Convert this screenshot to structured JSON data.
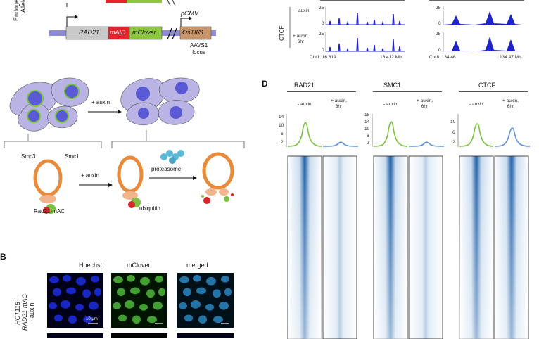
{
  "panel_a": {
    "side_label_line1": "Endogenous",
    "side_label_line2": "Alleles",
    "genes": {
      "rad21": "RAD21",
      "maid": "mAID",
      "mclover": "mClover",
      "ostir1": "OsTIR1"
    },
    "promoter": "pCMV",
    "locus_line1": "AAVS1",
    "locus_line2": "locus",
    "auxin_arrow": "+ auxin",
    "smc3": "Smc3",
    "smc1": "Smc1",
    "auxin_arrow2": "+ auxin",
    "proteasome": "proteasome",
    "rad21_mac": "Rad21-mAC",
    "ubiquitin": "ubiquitin"
  },
  "panel_b": {
    "letter": "B",
    "col_hoechst": "Hoechst",
    "col_mclover": "mClover",
    "col_merged": "merged",
    "row_label_line1": "HCT116-",
    "row_label_line2": "RAD21-mAC",
    "row_label_line3": "- auxin",
    "scale_bar": "10 μm"
  },
  "panel_c": {
    "ctcf": "CTCF",
    "minus_auxin": "- auxin",
    "plus_auxin_line1": "+ auxin,",
    "plus_auxin_line2": "6hr",
    "y_max": "25",
    "y_min": "0",
    "chr1_start": "Chr1: 16.319",
    "chr1_end": "16.412 Mb",
    "chr8_start": "Chr8: 134.46",
    "chr8_end": "134.47 Mb"
  },
  "panel_d": {
    "letter": "D",
    "groups": [
      {
        "name": "RAD21",
        "minus": "- auxin",
        "plus_line1": "+ auxin,",
        "plus_line2": "6hr",
        "ticks": [
          "14",
          "10",
          "6",
          "2"
        ]
      },
      {
        "name": "SMC1",
        "minus": "- auxin",
        "plus_line1": "+ auxin,",
        "plus_line2": "6hr",
        "ticks": [
          "18",
          "14",
          "10",
          "6",
          "2"
        ]
      },
      {
        "name": "CTCF",
        "minus": "- auxin",
        "plus_line1": "+ auxin,",
        "plus_line2": "6hr",
        "ticks": [
          "10",
          "6",
          "2"
        ]
      }
    ]
  },
  "colors": {
    "rad21_box": "#c9c9c9",
    "maid_box": "#e8222a",
    "mclover_box": "#8dc63f",
    "ostir1_box": "#c8956a",
    "chromosome": "#8e8bd6",
    "track_fill": "#1f24c8",
    "profile_minus": "#7cc242",
    "profile_plus": "#5b8fd9",
    "heatmap_blue": "#1f5fa8"
  }
}
